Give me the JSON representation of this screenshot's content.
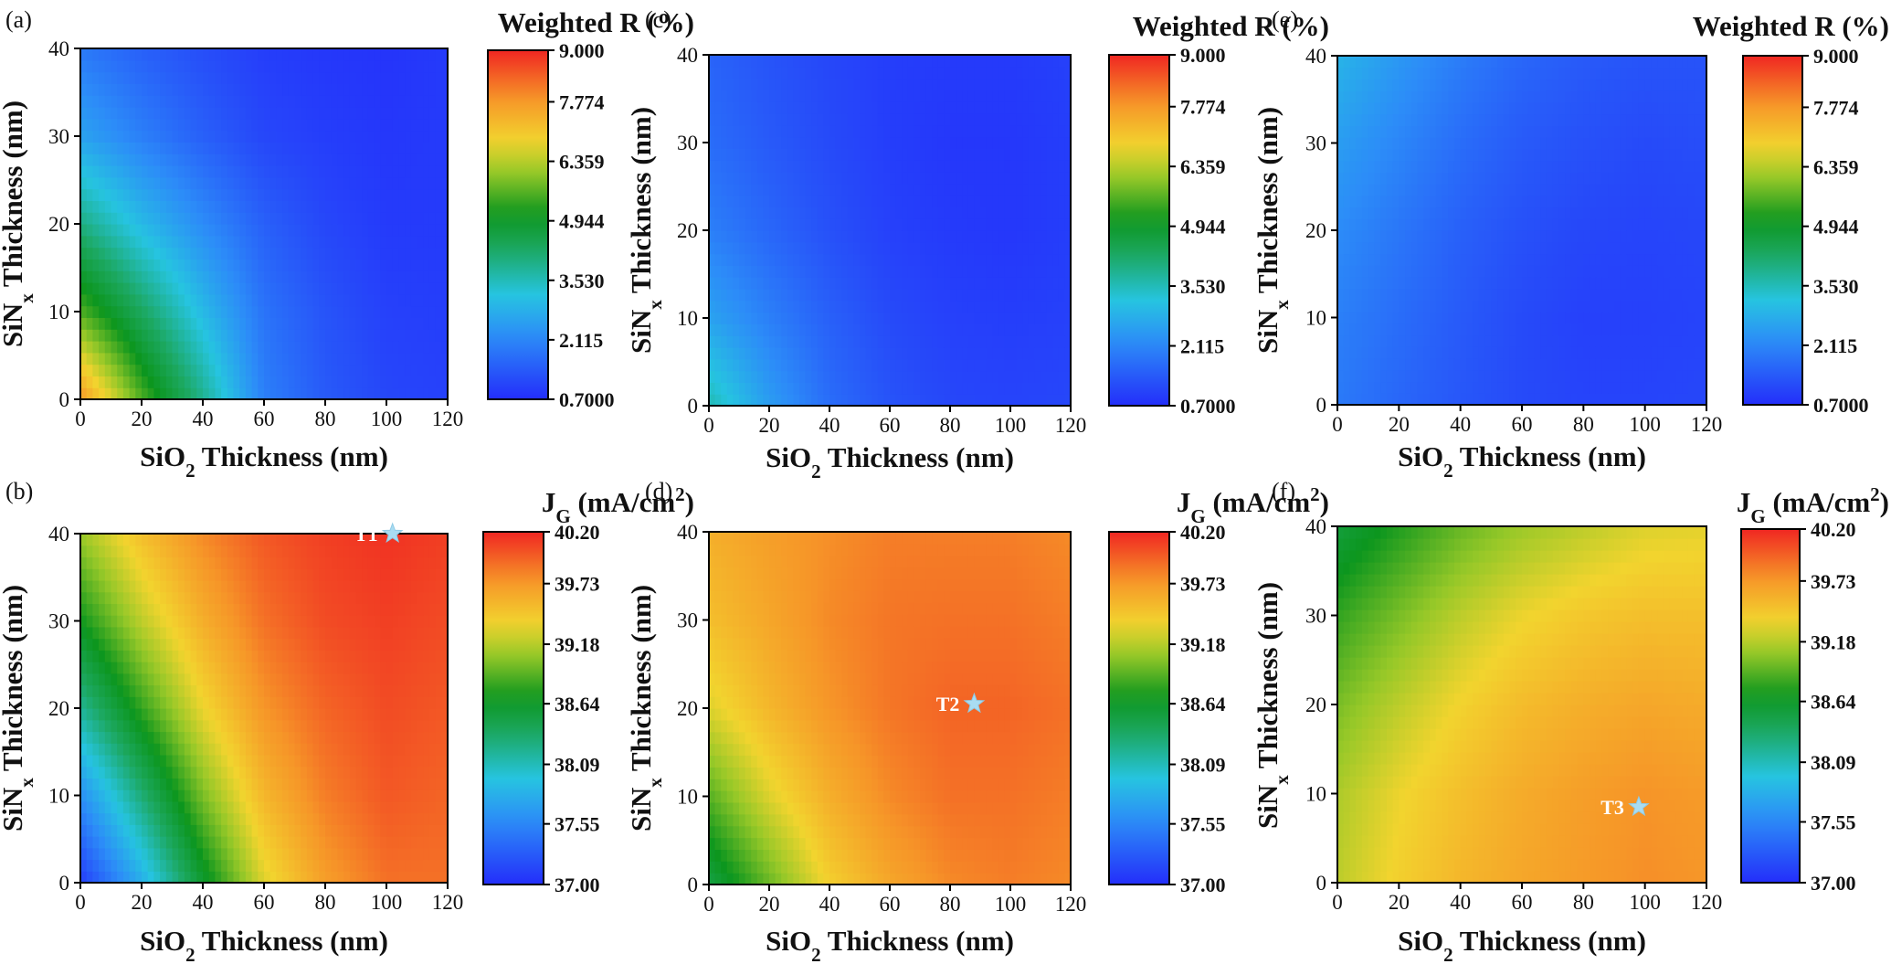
{
  "chart_data": [
    {
      "type": "heatmap",
      "panel_label": "(a)",
      "xlabel": "SiO2 Thickness (nm)",
      "ylabel": "SiNx Thickness (nm)",
      "colorbar_title": "Weighted R (%)",
      "xlim": [
        0,
        120
      ],
      "ylim": [
        0,
        40
      ],
      "x_ticks": [
        "0",
        "20",
        "40",
        "60",
        "80",
        "100",
        "120"
      ],
      "y_ticks": [
        "0",
        "10",
        "20",
        "30",
        "40"
      ],
      "colorbar_range": [
        0.7,
        9.0
      ],
      "colorbar_ticks": [
        "0.7000",
        "2.115",
        "3.530",
        "4.944",
        "6.359",
        "7.774",
        "9.000"
      ],
      "field": {
        "x": [
          0,
          20,
          40,
          60,
          80,
          100,
          120
        ],
        "y": [
          0,
          10,
          20,
          30,
          40
        ],
        "z": [
          [
            7.8,
            5.6,
            3.9,
            2.0,
            1.4,
            1.1,
            1.0
          ],
          [
            5.6,
            4.3,
            3.0,
            1.8,
            1.3,
            1.0,
            0.95
          ],
          [
            4.0,
            3.0,
            2.2,
            1.5,
            1.1,
            0.9,
            0.9
          ],
          [
            2.6,
            2.0,
            1.5,
            1.1,
            0.95,
            0.85,
            0.9
          ],
          [
            1.9,
            1.5,
            1.2,
            0.95,
            0.85,
            0.8,
            0.9
          ]
        ]
      }
    },
    {
      "type": "heatmap",
      "panel_label": "(b)",
      "xlabel": "SiO2 Thickness (nm)",
      "ylabel": "SiNx Thickness (nm)",
      "colorbar_title": "JG (mA/cm2)",
      "xlim": [
        0,
        120
      ],
      "ylim": [
        0,
        40
      ],
      "x_ticks": [
        "0",
        "20",
        "40",
        "60",
        "80",
        "100",
        "120"
      ],
      "y_ticks": [
        "0",
        "10",
        "20",
        "30",
        "40"
      ],
      "colorbar_range": [
        37.0,
        40.2
      ],
      "colorbar_ticks": [
        "37.00",
        "37.55",
        "38.09",
        "38.64",
        "39.18",
        "39.73",
        "40.20"
      ],
      "field": {
        "x": [
          0,
          20,
          40,
          60,
          80,
          100,
          120
        ],
        "y": [
          0,
          10,
          20,
          30,
          40
        ],
        "z": [
          [
            37.1,
            37.8,
            38.6,
            39.3,
            39.7,
            39.9,
            39.9
          ],
          [
            37.6,
            38.3,
            39.0,
            39.55,
            39.85,
            40.0,
            39.95
          ],
          [
            38.2,
            38.8,
            39.35,
            39.75,
            39.95,
            40.05,
            40.0
          ],
          [
            38.7,
            39.2,
            39.6,
            39.9,
            40.05,
            40.1,
            40.05
          ],
          [
            39.1,
            39.5,
            39.8,
            40.0,
            40.1,
            40.15,
            40.1
          ]
        ]
      },
      "marker": {
        "label": "T1",
        "x": 102,
        "y": 40
      }
    },
    {
      "type": "heatmap",
      "panel_label": "(c)",
      "xlabel": "SiO2 Thickness (nm)",
      "ylabel": "SiNx Thickness (nm)",
      "colorbar_title": "Weighted R (%)",
      "xlim": [
        0,
        120
      ],
      "ylim": [
        0,
        40
      ],
      "x_ticks": [
        "0",
        "20",
        "40",
        "60",
        "80",
        "100",
        "120"
      ],
      "y_ticks": [
        "0",
        "10",
        "20",
        "30",
        "40"
      ],
      "colorbar_range": [
        0.7,
        9.0
      ],
      "colorbar_ticks": [
        "0.7000",
        "2.115",
        "3.530",
        "4.944",
        "6.359",
        "7.774",
        "9.000"
      ],
      "field": {
        "x": [
          0,
          20,
          40,
          60,
          80,
          100,
          120
        ],
        "y": [
          0,
          10,
          20,
          30,
          40
        ],
        "z": [
          [
            3.6,
            2.5,
            1.7,
            1.3,
            1.1,
            1.05,
            1.1
          ],
          [
            2.6,
            2.0,
            1.5,
            1.15,
            1.0,
            0.95,
            1.0
          ],
          [
            2.0,
            1.6,
            1.25,
            1.0,
            0.9,
            0.85,
            0.95
          ],
          [
            1.7,
            1.4,
            1.15,
            0.95,
            0.85,
            0.85,
            0.95
          ],
          [
            1.55,
            1.3,
            1.1,
            0.95,
            0.9,
            0.9,
            1.0
          ]
        ]
      }
    },
    {
      "type": "heatmap",
      "panel_label": "(d)",
      "xlabel": "SiO2 Thickness (nm)",
      "ylabel": "SiNx Thickness (nm)",
      "colorbar_title": "JG (mA/cm2)",
      "xlim": [
        0,
        120
      ],
      "ylim": [
        0,
        40
      ],
      "x_ticks": [
        "0",
        "20",
        "40",
        "60",
        "80",
        "100",
        "120"
      ],
      "y_ticks": [
        "0",
        "10",
        "20",
        "30",
        "40"
      ],
      "colorbar_range": [
        37.0,
        40.2
      ],
      "colorbar_ticks": [
        "37.00",
        "37.55",
        "38.09",
        "38.64",
        "39.18",
        "39.73",
        "40.20"
      ],
      "field": {
        "x": [
          0,
          20,
          40,
          60,
          80,
          100,
          120
        ],
        "y": [
          0,
          10,
          20,
          30,
          40
        ],
        "z": [
          [
            38.5,
            38.95,
            39.4,
            39.65,
            39.8,
            39.85,
            39.8
          ],
          [
            38.9,
            39.3,
            39.6,
            39.8,
            39.9,
            39.9,
            39.85
          ],
          [
            39.3,
            39.55,
            39.75,
            39.88,
            39.95,
            39.95,
            39.9
          ],
          [
            39.5,
            39.65,
            39.8,
            39.88,
            39.9,
            39.9,
            39.85
          ],
          [
            39.6,
            39.7,
            39.78,
            39.85,
            39.85,
            39.85,
            39.8
          ]
        ]
      },
      "marker": {
        "label": "T2",
        "x": 88,
        "y": 20.5
      }
    },
    {
      "type": "heatmap",
      "panel_label": "(e)",
      "xlabel": "SiO2 Thickness (nm)",
      "ylabel": "SiNx Thickness (nm)",
      "colorbar_title": "Weighted R (%)",
      "xlim": [
        0,
        120
      ],
      "ylim": [
        0,
        40
      ],
      "x_ticks": [
        "0",
        "20",
        "40",
        "60",
        "80",
        "100",
        "120"
      ],
      "y_ticks": [
        "0",
        "10",
        "20",
        "30",
        "40"
      ],
      "colorbar_range": [
        0.7,
        9.0
      ],
      "colorbar_ticks": [
        "0.7000",
        "2.115",
        "3.530",
        "4.944",
        "6.359",
        "7.774",
        "9.000"
      ],
      "field": {
        "x": [
          0,
          20,
          40,
          60,
          80,
          100,
          120
        ],
        "y": [
          0,
          10,
          20,
          30,
          40
        ],
        "z": [
          [
            1.9,
            1.6,
            1.35,
            1.15,
            1.05,
            1.05,
            1.1
          ],
          [
            2.0,
            1.7,
            1.4,
            1.15,
            1.0,
            1.0,
            1.05
          ],
          [
            2.2,
            1.85,
            1.5,
            1.25,
            1.1,
            1.05,
            1.1
          ],
          [
            2.5,
            2.1,
            1.7,
            1.4,
            1.25,
            1.15,
            1.2
          ],
          [
            2.9,
            2.4,
            1.95,
            1.6,
            1.4,
            1.3,
            1.3
          ]
        ]
      }
    },
    {
      "type": "heatmap",
      "panel_label": "(f)",
      "xlabel": "SiO2 Thickness (nm)",
      "ylabel": "SiNx Thickness (nm)",
      "colorbar_title": "JG (mA/cm2)",
      "xlim": [
        0,
        120
      ],
      "ylim": [
        0,
        40
      ],
      "x_ticks": [
        "0",
        "20",
        "40",
        "60",
        "80",
        "100",
        "120"
      ],
      "y_ticks": [
        "0",
        "10",
        "20",
        "30",
        "40"
      ],
      "colorbar_range": [
        37.0,
        40.2
      ],
      "colorbar_ticks": [
        "37.00",
        "37.55",
        "38.09",
        "38.64",
        "39.18",
        "39.73",
        "40.20"
      ],
      "field": {
        "x": [
          0,
          20,
          40,
          60,
          80,
          100,
          120
        ],
        "y": [
          0,
          10,
          20,
          30,
          40
        ],
        "z": [
          [
            39.2,
            39.4,
            39.55,
            39.65,
            39.72,
            39.78,
            39.75
          ],
          [
            39.15,
            39.35,
            39.5,
            39.62,
            39.7,
            39.76,
            39.72
          ],
          [
            39.0,
            39.2,
            39.38,
            39.52,
            39.6,
            39.65,
            39.62
          ],
          [
            38.8,
            39.0,
            39.2,
            39.35,
            39.45,
            39.5,
            39.5
          ],
          [
            38.55,
            38.75,
            38.95,
            39.1,
            39.2,
            39.3,
            39.32
          ]
        ]
      },
      "marker": {
        "label": "T3",
        "x": 98,
        "y": 8.5
      }
    }
  ]
}
